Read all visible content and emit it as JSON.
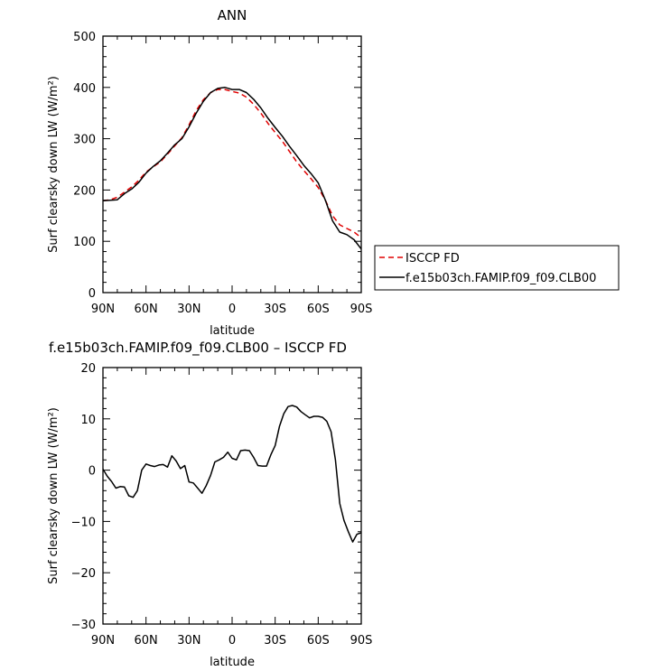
{
  "chart_data": [
    {
      "type": "line",
      "title": "ANN",
      "xlabel": "latitude",
      "ylabel": "Surf clearsky down LW (W/m²)",
      "xlim": [
        90,
        -90
      ],
      "ylim": [
        0,
        500
      ],
      "xticks": [
        90,
        60,
        30,
        0,
        -30,
        -60,
        -90
      ],
      "xtick_labels": [
        "90N",
        "60N",
        "30N",
        "0",
        "30S",
        "60S",
        "90S"
      ],
      "yticks": [
        0,
        100,
        200,
        300,
        400,
        500
      ],
      "ytick_labels": [
        "0",
        "100",
        "200",
        "300",
        "400",
        "500"
      ],
      "legend_position": "right",
      "series": [
        {
          "name": "ISCCP FD",
          "color": "#e00000",
          "dash": true,
          "x": [
            90,
            85,
            80,
            75,
            70,
            65,
            60,
            55,
            50,
            45,
            40,
            35,
            30,
            25,
            20,
            15,
            10,
            5,
            0,
            -5,
            -10,
            -15,
            -20,
            -25,
            -30,
            -35,
            -40,
            -45,
            -50,
            -55,
            -60,
            -65,
            -70,
            -75,
            -80,
            -85,
            -90
          ],
          "values": [
            179,
            181,
            186,
            196,
            206,
            219,
            235,
            245,
            255,
            270,
            286,
            302,
            327,
            355,
            376,
            390,
            396,
            396,
            392,
            389,
            381,
            367,
            350,
            330,
            312,
            295,
            275,
            255,
            238,
            222,
            205,
            180,
            150,
            132,
            125,
            118,
            107
          ]
        },
        {
          "name": "f.e15b03ch.FAMIP.f09_f09.CLB00",
          "color": "#000000",
          "dash": false,
          "x": [
            90,
            85,
            80,
            75,
            70,
            65,
            60,
            55,
            50,
            45,
            40,
            35,
            30,
            25,
            20,
            15,
            10,
            5,
            0,
            -5,
            -10,
            -15,
            -20,
            -25,
            -30,
            -35,
            -40,
            -45,
            -50,
            -55,
            -60,
            -65,
            -70,
            -75,
            -80,
            -85,
            -90
          ],
          "values": [
            179,
            180,
            181,
            193,
            202,
            215,
            233,
            246,
            257,
            272,
            288,
            300,
            323,
            350,
            373,
            390,
            398,
            400,
            396,
            396,
            390,
            377,
            360,
            340,
            322,
            305,
            285,
            267,
            248,
            232,
            214,
            180,
            140,
            118,
            113,
            103,
            85
          ]
        }
      ]
    },
    {
      "type": "line",
      "title": "f.e15b03ch.FAMIP.f09_f09.CLB00 – ISCCP FD",
      "xlabel": "latitude",
      "ylabel": "Surf clearsky down LW (W/m²)",
      "xlim": [
        90,
        -90
      ],
      "ylim": [
        -30,
        20
      ],
      "xticks": [
        90,
        60,
        30,
        0,
        -30,
        -60,
        -90
      ],
      "xtick_labels": [
        "90N",
        "60N",
        "30N",
        "0",
        "30S",
        "60S",
        "90S"
      ],
      "yticks": [
        -30,
        -20,
        -10,
        0,
        10,
        20
      ],
      "ytick_labels": [
        "−30",
        "−20",
        "−10",
        "0",
        "10",
        "20"
      ],
      "series": [
        {
          "color": "#000000",
          "dash": false,
          "x": [
            90,
            87,
            84,
            81,
            78,
            75,
            72,
            69,
            66,
            63,
            60,
            57,
            54,
            51,
            48,
            45,
            42,
            39,
            36,
            33,
            30,
            27,
            24,
            21,
            18,
            15,
            12,
            9,
            6,
            3,
            0,
            -3,
            -6,
            -9,
            -12,
            -15,
            -18,
            -21,
            -24,
            -27,
            -30,
            -33,
            -36,
            -39,
            -42,
            -45,
            -48,
            -51,
            -54,
            -57,
            -60,
            -63,
            -66,
            -69,
            -72,
            -75,
            -78,
            -81,
            -84,
            -87,
            -90
          ],
          "values": [
            0.2,
            -1.2,
            -2.2,
            -3.5,
            -3.2,
            -3.3,
            -5.0,
            -5.3,
            -4.0,
            0.0,
            1.2,
            0.9,
            0.7,
            1.0,
            1.1,
            0.6,
            2.8,
            1.8,
            0.3,
            0.9,
            -2.3,
            -2.5,
            -3.5,
            -4.5,
            -3.0,
            -1.0,
            1.6,
            2.0,
            2.5,
            3.5,
            2.3,
            2.0,
            3.8,
            3.9,
            3.8,
            2.5,
            0.9,
            0.8,
            0.8,
            3.0,
            4.8,
            8.5,
            11.0,
            12.4,
            12.6,
            12.3,
            11.4,
            10.8,
            10.2,
            10.5,
            10.5,
            10.3,
            9.5,
            7.5,
            2.0,
            -6.5,
            -9.8,
            -12.0,
            -14.0,
            -12.5,
            -12.2
          ]
        }
      ]
    }
  ]
}
